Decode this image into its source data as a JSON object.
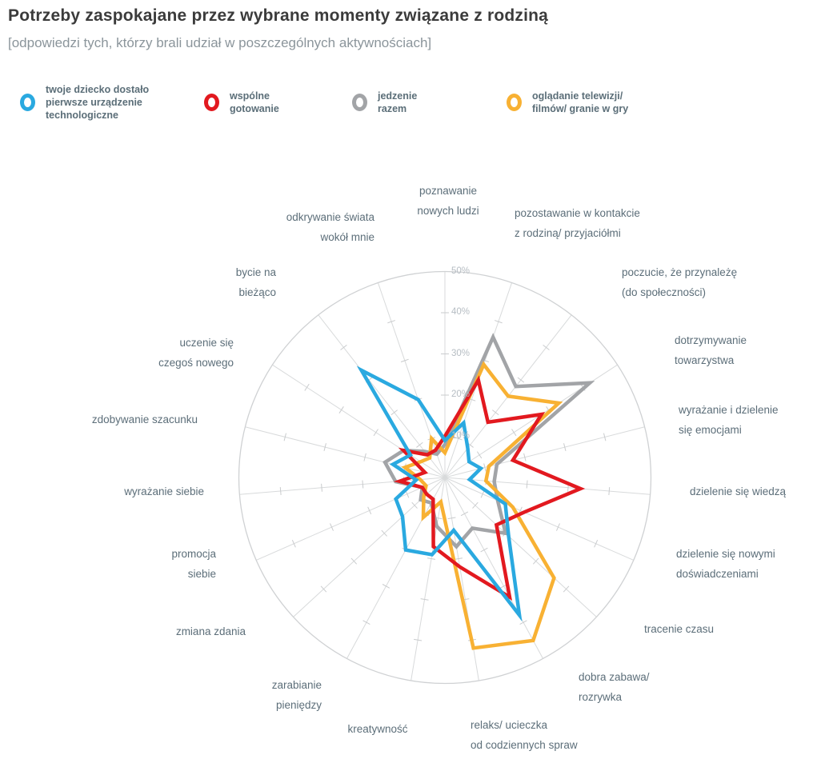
{
  "page": {
    "title": "Potrzeby zaspokajane przez wybrane momenty związane z rodziną",
    "subtitle": "[odpowiedzi tych, którzy brali udział w poszczególnych aktywnościach]"
  },
  "legend": [
    {
      "label": "twoje dziecko dostało\npierwsze urządzenie\ntechnologiczne",
      "color": "#2aa9e0"
    },
    {
      "label": "wspólne\ngotowanie",
      "color": "#e2191f"
    },
    {
      "label": "jedzenie\nrazem",
      "color": "#a2a4a7"
    },
    {
      "label": "oglądanie telewizji/\nfilmów/ granie w gry",
      "color": "#f8b133"
    }
  ],
  "chart_data": {
    "type": "radar",
    "title": "Potrzeby zaspokajane przez wybrane momenty związane z rodziną",
    "units": "%",
    "rlim": [
      0,
      50
    ],
    "radial_ticks": [
      "10%",
      "20%",
      "30%",
      "40%",
      "50%"
    ],
    "grid": "19 spokes, cross ticks every 10%, outer circle at 50%",
    "legend_position": "top",
    "categories": [
      "poznawanie\nnowych ludzi",
      "pozostawanie w kontakcie\nz rodziną/ przyjaciółmi",
      "poczucie, że przynależę\n(do społeczności)",
      "dotrzymywanie\ntowarzystwa",
      "wyrażanie i dzielenie\nsię emocjami",
      "dzielenie się wiedzą",
      "dzielenie się nowymi\ndoświadczeniami",
      "tracenie czasu",
      "dobra zabawa/\nrozrywka",
      "relaks/ ucieczka\nod codziennych spraw",
      "kreatywność",
      "zarabianie\npieniędzy",
      "zmiana zdania",
      "promocja\nsiebie",
      "wyrażanie siebie",
      "zdobywanie szacunku",
      "uczenie się\nczegoś nowego",
      "bycie na\nbieżąco",
      "odkrywanie świata\nwokół mnie"
    ],
    "series": [
      {
        "name": "jedzenie razem",
        "color": "#a2a4a7",
        "values": [
          8,
          36,
          28,
          42,
          13,
          12,
          14,
          20,
          14,
          17,
          12,
          7,
          8,
          6,
          12,
          15,
          12,
          8,
          6
        ]
      },
      {
        "name": "oglądanie telewizji/ filmów/ granie w gry",
        "color": "#f8b133",
        "values": [
          6,
          29,
          25,
          33,
          11,
          10,
          18,
          36,
          45,
          42,
          6,
          11,
          7,
          5,
          6,
          10,
          7,
          6,
          10
        ]
      },
      {
        "name": "wspólne gotowanie",
        "color": "#e2191f",
        "values": [
          10,
          25,
          17,
          28,
          17,
          33,
          21,
          17,
          33,
          22,
          17,
          6,
          6,
          6,
          11,
          5,
          12,
          7,
          7
        ]
      },
      {
        "name": "twoje dziecko dostało pierwsze urządzenie technologiczne",
        "color": "#2aa9e0",
        "values": [
          9,
          14,
          9,
          7,
          9,
          6,
          16,
          21,
          38,
          13,
          19,
          20,
          14,
          13,
          7,
          13,
          10,
          33,
          20
        ]
      }
    ]
  }
}
